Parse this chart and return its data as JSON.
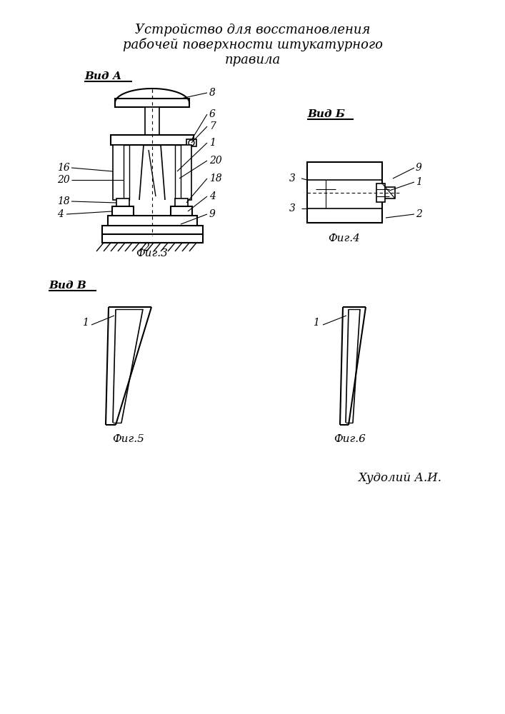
{
  "title_lines": [
    "Устройство для восстановления",
    "рабочей поверхности штукатурного",
    "правила"
  ],
  "title_fontsize": 13,
  "fig_width": 7.07,
  "fig_height": 10.0,
  "bg_color": "#ffffff",
  "line_color": "#000000",
  "text_color": "#000000",
  "author": "Худолий А.И.",
  "vid_a": "Вид А",
  "vid_b": "Вид Б",
  "vid_v": "Вид В",
  "fig3": "Фиг.3",
  "fig4": "Фиг.4",
  "fig5": "Фиг.5",
  "fig6": "Фиг.6"
}
